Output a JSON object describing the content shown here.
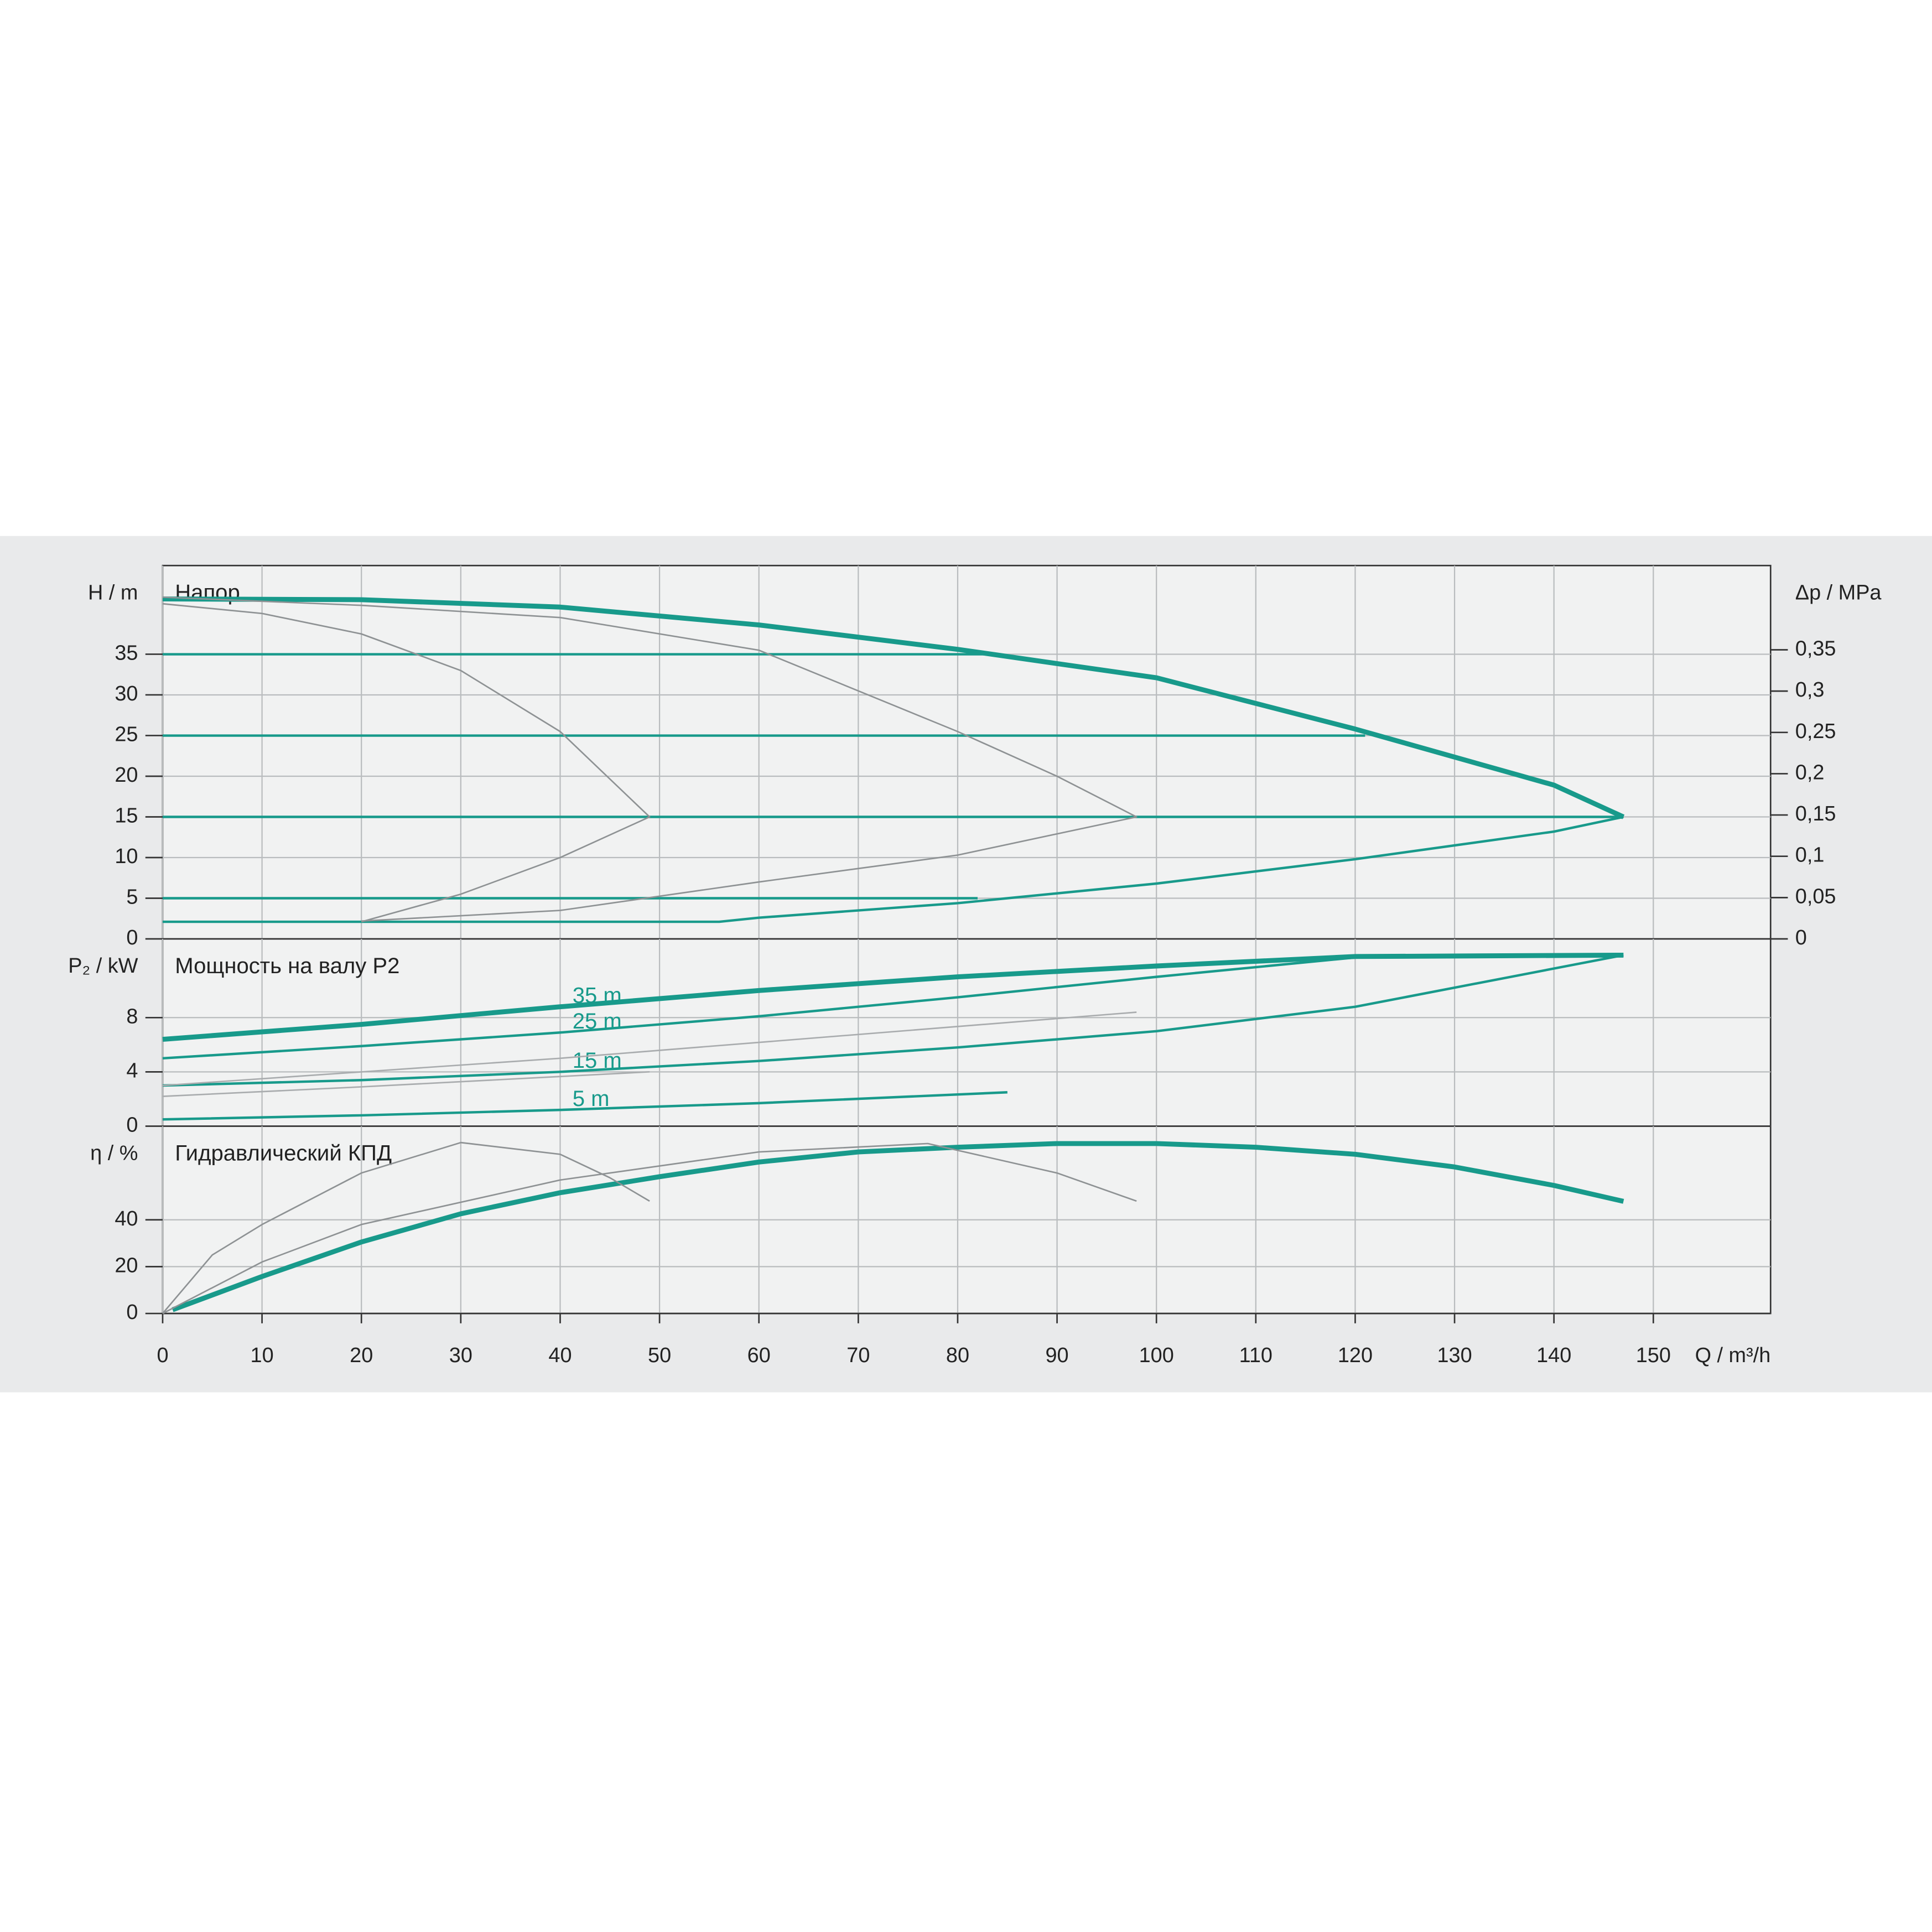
{
  "chart_data": [
    {
      "type": "line",
      "title": "Напор",
      "ylabel": "H / m",
      "y2label": "Δp / MPa",
      "xlim": [
        0,
        161.8
      ],
      "xticks": [
        0,
        10,
        20,
        30,
        40,
        50,
        60,
        70,
        80,
        90,
        100,
        110,
        120,
        130,
        140,
        150
      ],
      "ylim": [
        0,
        45.9
      ],
      "yticks": [
        0,
        5,
        10,
        15,
        20,
        25,
        30,
        35
      ],
      "y2lim": [
        0,
        0.452
      ],
      "y2ticks": [
        0,
        {
          "value": 0.05,
          "label": "0,05"
        },
        {
          "value": 0.1,
          "label": "0,1"
        },
        {
          "value": 0.15,
          "label": "0,15"
        },
        {
          "value": 0.2,
          "label": "0,2"
        },
        {
          "value": 0.25,
          "label": "0,25"
        },
        {
          "value": 0.3,
          "label": "0,3"
        },
        {
          "value": 0.35,
          "label": "0,35"
        }
      ],
      "grid": true,
      "series": [
        {
          "color": "#189a8b",
          "x": [
            0,
            20,
            40,
            60,
            80,
            100,
            120,
            140,
            147
          ],
          "values": [
            41.8,
            41.7,
            40.8,
            38.6,
            35.6,
            32.1,
            25.8,
            18.9,
            15
          ]
        },
        {
          "color": "#189a8b",
          "x": [
            0,
            56,
            60,
            80,
            100,
            120,
            140,
            147
          ],
          "values": [
            2.1,
            2.1,
            2.6,
            4.4,
            6.8,
            9.8,
            13.2,
            15
          ]
        },
        {
          "color": "#189a8b",
          "x": [
            0,
            83
          ],
          "values": [
            35,
            35
          ]
        },
        {
          "color": "#189a8b",
          "x": [
            0,
            121
          ],
          "values": [
            25,
            25
          ]
        },
        {
          "color": "#189a8b",
          "x": [
            0,
            147
          ],
          "values": [
            15,
            15
          ]
        },
        {
          "color": "#189a8b",
          "x": [
            0,
            82
          ],
          "values": [
            5,
            5
          ]
        },
        {
          "color": "#8e9294",
          "x": [
            0,
            10,
            20,
            30,
            40,
            49,
            40,
            30,
            20
          ],
          "values": [
            41.2,
            40,
            37.5,
            33,
            25.5,
            15,
            10,
            5.5,
            2.1
          ]
        },
        {
          "color": "#8e9294",
          "x": [
            0,
            20,
            40,
            60,
            80,
            90,
            98,
            80,
            60,
            40,
            20
          ],
          "values": [
            42,
            41,
            39.5,
            35.5,
            25.5,
            20,
            15,
            10.3,
            7,
            3.5,
            2.2
          ]
        }
      ]
    },
    {
      "type": "line",
      "title": "Мощность на валу P2",
      "ylabel": "P₂ / kW",
      "xlim": [
        0,
        161.8
      ],
      "xticks": [
        0,
        10,
        20,
        30,
        40,
        50,
        60,
        70,
        80,
        90,
        100,
        110,
        120,
        130,
        140,
        150
      ],
      "ylim": [
        0,
        13.8
      ],
      "yticks": [
        0,
        4,
        8
      ],
      "grid": true,
      "series": [
        {
          "name": "35 m",
          "color": "#189a8b",
          "x": [
            0,
            20,
            40,
            60,
            80,
            100,
            120,
            147
          ],
          "values": [
            6.4,
            7.5,
            8.8,
            10.0,
            11.0,
            11.8,
            12.5,
            12.6
          ]
        },
        {
          "name": "25 m",
          "color": "#189a8b",
          "x": [
            0,
            20,
            40,
            60,
            80,
            100,
            121
          ],
          "values": [
            5.0,
            5.9,
            6.9,
            8.1,
            9.5,
            11.0,
            12.5
          ]
        },
        {
          "name": "15 m",
          "color": "#189a8b",
          "x": [
            0,
            20,
            40,
            60,
            80,
            100,
            120,
            147
          ],
          "values": [
            3.0,
            3.4,
            4.0,
            4.8,
            5.8,
            7.0,
            8.8,
            12.6
          ]
        },
        {
          "name": "5 m",
          "color": "#189a8b",
          "x": [
            0,
            20,
            40,
            60,
            85
          ],
          "values": [
            0.5,
            0.8,
            1.2,
            1.7,
            2.5
          ]
        },
        {
          "color": "#a9acae",
          "x": [
            0,
            20,
            49
          ],
          "values": [
            2.2,
            2.9,
            4.0
          ]
        },
        {
          "color": "#a9acae",
          "x": [
            0,
            40,
            98
          ],
          "values": [
            3.0,
            5.0,
            8.4
          ]
        }
      ]
    },
    {
      "type": "line",
      "title": "Гидравлический КПД",
      "ylabel": "η / %",
      "xlabel": "Q / m³/h",
      "xlim": [
        0,
        161.8
      ],
      "xticks": [
        0,
        10,
        20,
        30,
        40,
        50,
        60,
        70,
        80,
        90,
        100,
        110,
        120,
        130,
        140,
        150
      ],
      "ylim": [
        0,
        80
      ],
      "yticks": [
        0,
        20,
        40
      ],
      "grid": true,
      "series": [
        {
          "color": "#189a8b",
          "x": [
            1,
            10,
            20,
            30,
            40,
            50,
            60,
            70,
            80,
            90,
            100,
            110,
            120,
            130,
            140,
            147
          ],
          "values": [
            1.6,
            15.8,
            30.5,
            42.6,
            51.6,
            58.4,
            64.7,
            69,
            71,
            72.6,
            72.6,
            71,
            68,
            62.6,
            54.7,
            47.9
          ]
        },
        {
          "color": "#8e9294",
          "x": [
            0,
            5,
            10,
            20,
            30,
            40,
            45,
            49
          ],
          "values": [
            0,
            25,
            38,
            60,
            73,
            68,
            58,
            48
          ]
        },
        {
          "color": "#8e9294",
          "x": [
            0,
            10,
            20,
            40,
            60,
            77,
            90,
            98
          ],
          "values": [
            0,
            22,
            38,
            57,
            69,
            72.6,
            60,
            48
          ]
        }
      ]
    }
  ]
}
